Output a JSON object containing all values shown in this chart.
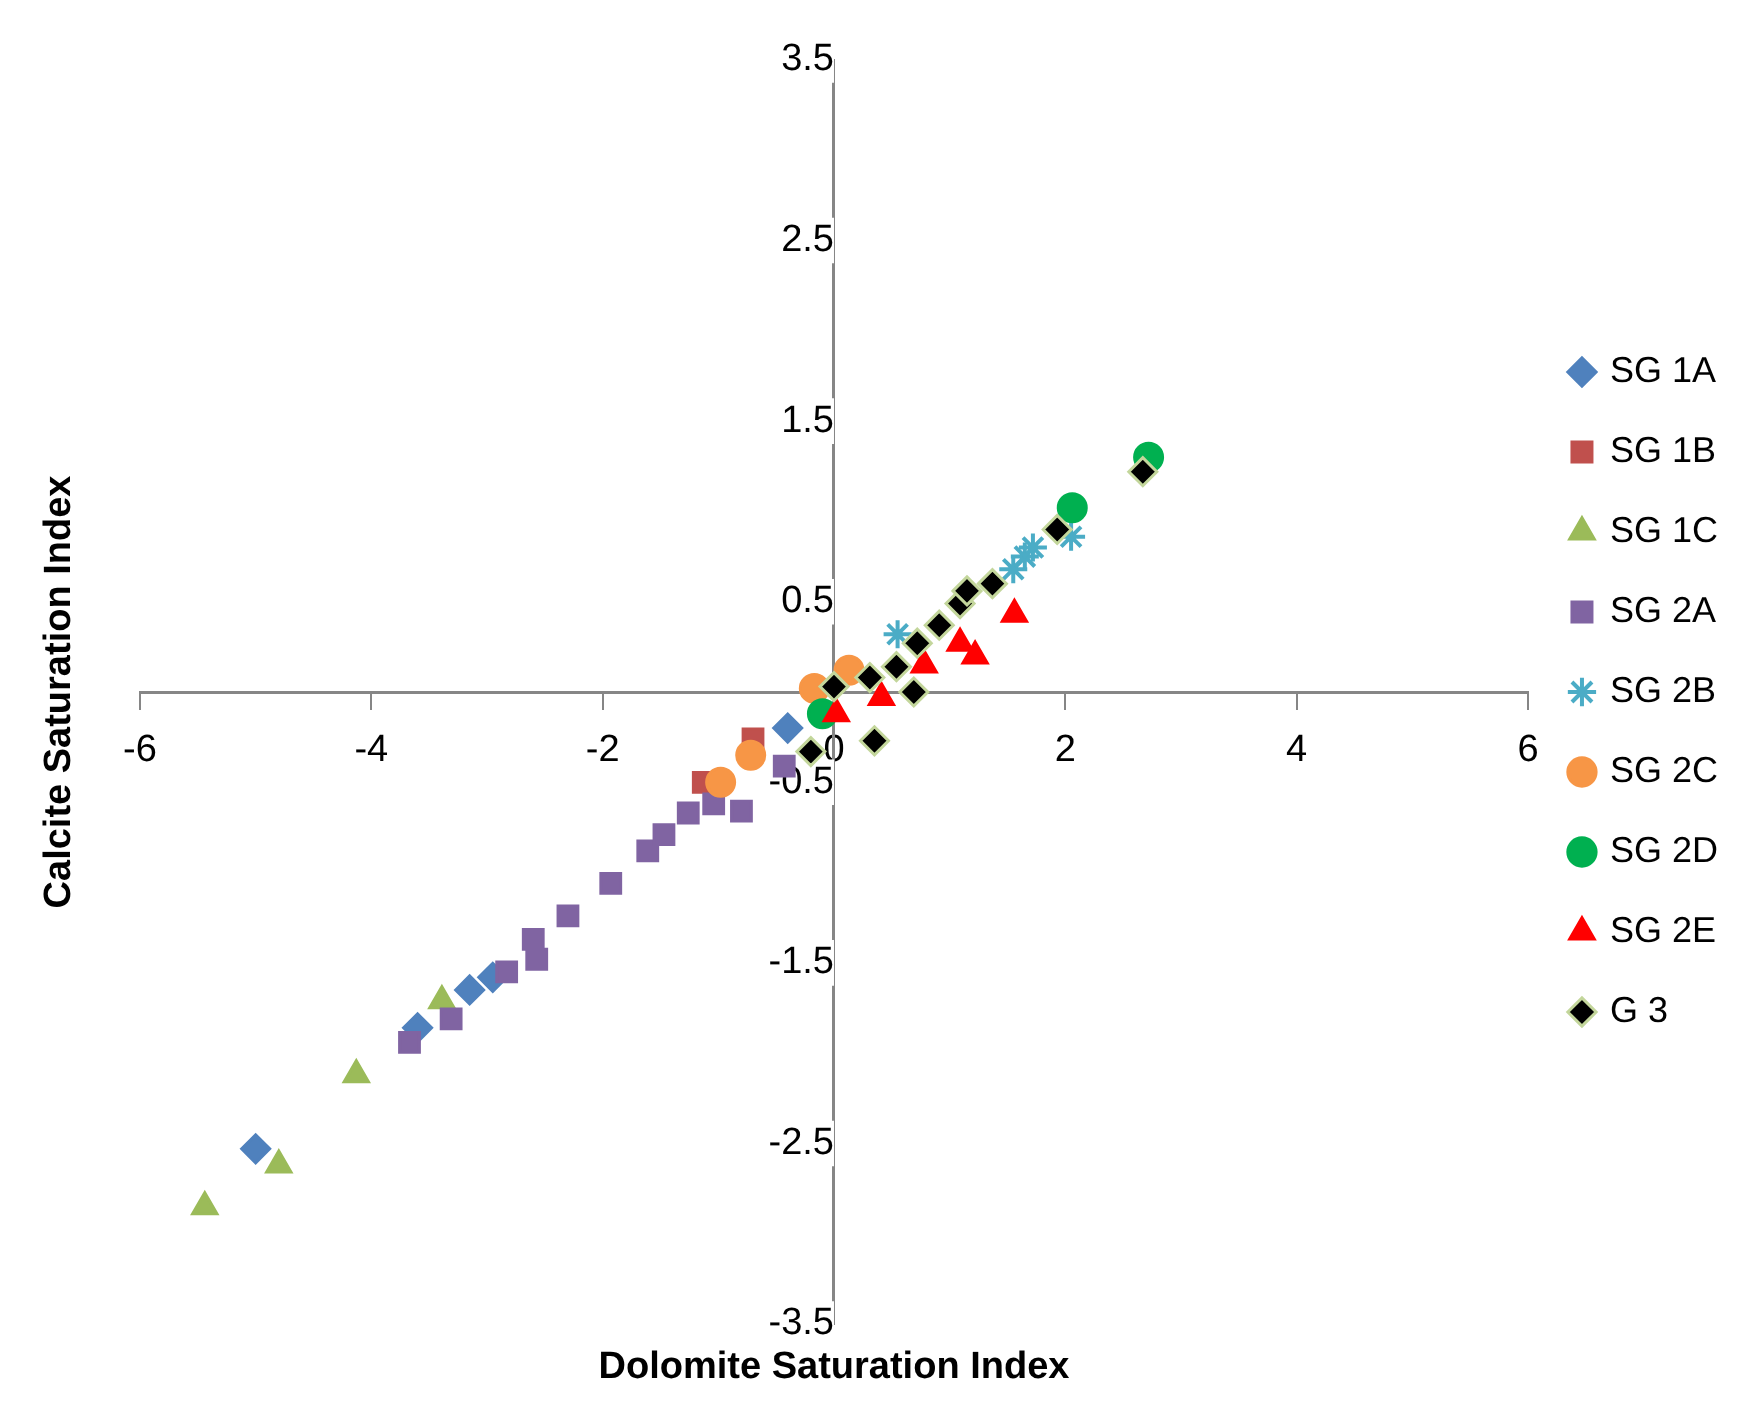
{
  "chart_data": {
    "type": "scatter",
    "xlabel": "Dolomite Saturation Index",
    "ylabel": "Calcite Saturation Index",
    "xlim": [
      -6,
      6
    ],
    "xticks": [
      -6,
      -4,
      -2,
      0,
      2,
      4,
      6
    ],
    "ylim": [
      -3.5,
      3.5
    ],
    "yticks": [
      -3.5,
      -2.5,
      -1.5,
      -0.5,
      0.5,
      1.5,
      2.5,
      3.5
    ],
    "grid": false,
    "legend": "right",
    "series": [
      {
        "name": "SG 1A",
        "color": "#4f81bd",
        "marker": "diamond",
        "x": [
          -5.0,
          -3.6,
          -3.15,
          -2.95,
          -0.4
        ],
        "values": [
          -2.53,
          -1.86,
          -1.65,
          -1.58,
          -0.2
        ]
      },
      {
        "name": "SG 1B",
        "color": "#c0504d",
        "marker": "square",
        "x": [
          -1.13,
          -0.7
        ],
        "values": [
          -0.5,
          -0.26
        ]
      },
      {
        "name": "SG 1C",
        "color": "#9bbb59",
        "marker": "triangle",
        "x": [
          -5.44,
          -4.8,
          -4.13,
          -3.39
        ],
        "values": [
          -2.85,
          -2.62,
          -2.12,
          -1.71
        ]
      },
      {
        "name": "SG 2A",
        "color": "#8064a2",
        "marker": "square",
        "x": [
          -3.67,
          -3.31,
          -2.83,
          -2.57,
          -2.6,
          -2.3,
          -1.93,
          -1.61,
          -1.47,
          -1.26,
          -1.04,
          -0.8,
          -0.43
        ],
        "values": [
          -1.94,
          -1.81,
          -1.55,
          -1.48,
          -1.37,
          -1.24,
          -1.06,
          -0.88,
          -0.79,
          -0.67,
          -0.62,
          -0.66,
          -0.41
        ]
      },
      {
        "name": "SG 2B",
        "color": "#4bacc6",
        "marker": "cross",
        "x": [
          0.55,
          0.95,
          1.55,
          1.65,
          1.72,
          2.05
        ],
        "values": [
          0.32,
          null,
          0.68,
          0.75,
          0.8,
          0.86
        ]
      },
      {
        "name": "SG 2C",
        "color": "#f79646",
        "marker": "circle",
        "x": [
          -0.98,
          -0.72,
          -0.17,
          0.13
        ],
        "values": [
          -0.5,
          -0.35,
          0.02,
          0.12
        ]
      },
      {
        "name": "SG 2D",
        "color": "#00b050",
        "marker": "circle",
        "x": [
          -0.1,
          0.94,
          2.06,
          2.72
        ],
        "values": [
          -0.12,
          null,
          1.02,
          1.3
        ]
      },
      {
        "name": "SG 2E",
        "color": "#ff0000",
        "marker": "triangle",
        "x": [
          0.02,
          0.41,
          0.78,
          1.0,
          1.09,
          1.22,
          1.56
        ],
        "values": [
          -0.12,
          -0.03,
          0.15,
          null,
          0.27,
          0.2,
          0.43
        ]
      },
      {
        "name": "G 3",
        "color": "#000000",
        "marker": "diamond",
        "x": [
          -0.2,
          0,
          0.31,
          0.35,
          0.54,
          0.69,
          0.72,
          0.91,
          1.09,
          1.15,
          1.37,
          1.93,
          2.67
        ],
        "values": [
          -0.33,
          0.03,
          0.08,
          -0.27,
          0.14,
          0,
          0.27,
          0.37,
          0.49,
          0.56,
          0.6,
          0.9,
          1.22
        ]
      }
    ]
  }
}
